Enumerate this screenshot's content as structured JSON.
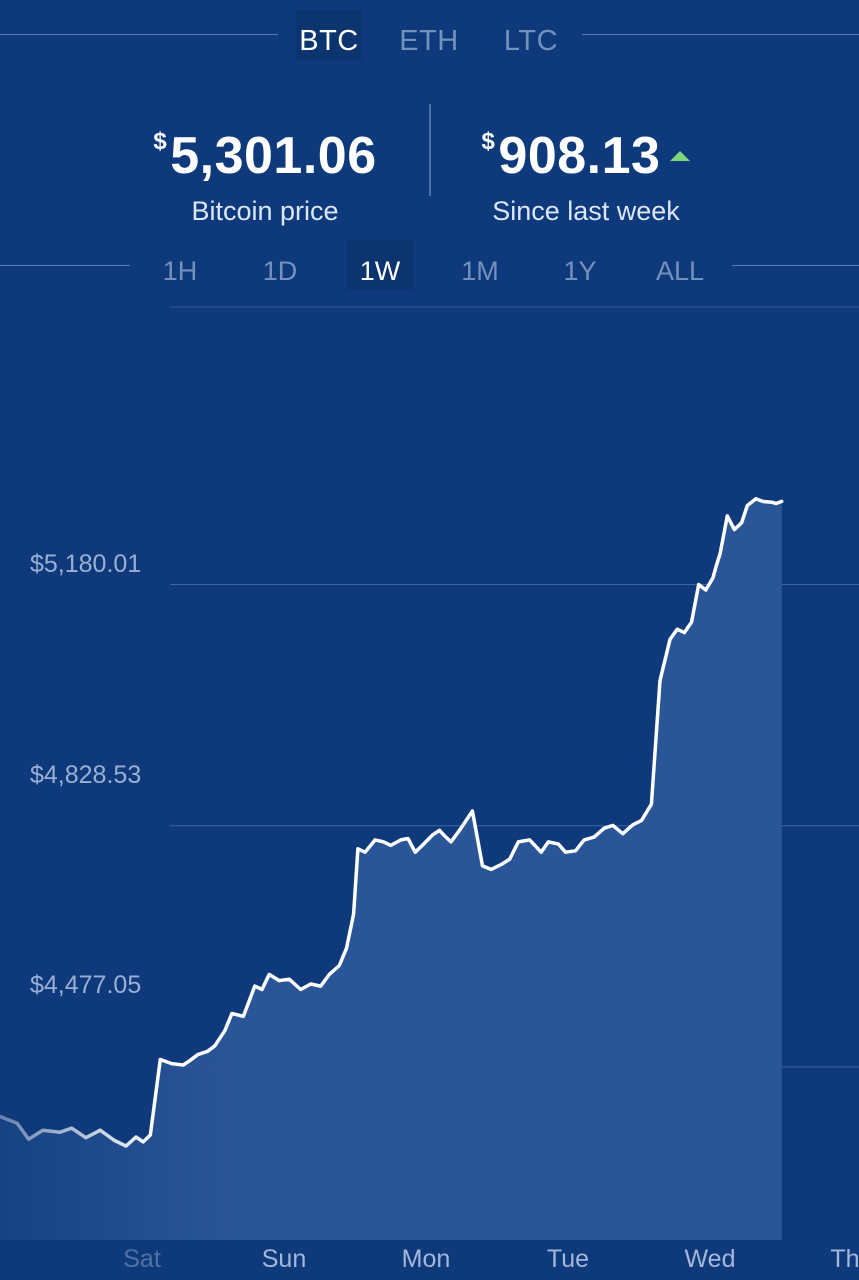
{
  "coins": [
    {
      "label": "BTC",
      "active": true
    },
    {
      "label": "ETH",
      "active": false
    },
    {
      "label": "LTC",
      "active": false
    }
  ],
  "summary": {
    "currency_symbol": "$",
    "price": "5,301.06",
    "price_label": "Bitcoin price",
    "change": "908.13",
    "change_label": "Since last week",
    "change_direction": "up"
  },
  "ranges": [
    {
      "label": "1H",
      "active": false
    },
    {
      "label": "1D",
      "active": false
    },
    {
      "label": "1W",
      "active": true
    },
    {
      "label": "1M",
      "active": false
    },
    {
      "label": "1Y",
      "active": false
    },
    {
      "label": "ALL",
      "active": false
    }
  ],
  "colors": {
    "background": "#0e3a7c",
    "line": "#ffffff",
    "fill": "#2a5596",
    "up": "#7fd87a"
  },
  "chart_data": {
    "type": "area",
    "y_tick_labels": [
      "$5,180.01",
      "$4,828.53",
      "$4,477.05"
    ],
    "y_ticks": [
      5180.01,
      4828.53,
      4477.05
    ],
    "x_tick_labels": [
      "Sat",
      "Sun",
      "Mon",
      "Tue",
      "Wed",
      "Th"
    ],
    "x_ticks": [
      0.5,
      1.5,
      2.5,
      3.5,
      4.5,
      5.5
    ],
    "ylim": [
      4225,
      5580
    ],
    "xlim": [
      0,
      6
    ],
    "series": [
      {
        "x": [
          0.0,
          0.12,
          0.2,
          0.3,
          0.42,
          0.5,
          0.6,
          0.7,
          0.8,
          0.88,
          0.95,
          1.0,
          1.05,
          1.12,
          1.2,
          1.28,
          1.33,
          1.38,
          1.45,
          1.5,
          1.57,
          1.62,
          1.7,
          1.78,
          1.83,
          1.88,
          1.95,
          2.02,
          2.1,
          2.17,
          2.24,
          2.3,
          2.37,
          2.42,
          2.47,
          2.5,
          2.55,
          2.62,
          2.68,
          2.73,
          2.8,
          2.85,
          2.9,
          2.95,
          3.02,
          3.07,
          3.1,
          3.15,
          3.22,
          3.3,
          3.37,
          3.43,
          3.5,
          3.56,
          3.62,
          3.7,
          3.78,
          3.83,
          3.9,
          3.95,
          4.02,
          4.08,
          4.15,
          4.22,
          4.28,
          4.35,
          4.42,
          4.48,
          4.55,
          4.61,
          4.68,
          4.73,
          4.78,
          4.83,
          4.88,
          4.93,
          4.98,
          5.0,
          5.03,
          5.08,
          5.13,
          5.18,
          5.22,
          5.28,
          5.33,
          5.39,
          5.42,
          5.46
        ],
        "values": [
          4405,
          4395,
          4372,
          4385,
          4382,
          4388,
          4374,
          4385,
          4370,
          4362,
          4375,
          4368,
          4378,
          4488,
          4482,
          4480,
          4487,
          4495,
          4500,
          4508,
          4530,
          4555,
          4551,
          4595,
          4590,
          4612,
          4603,
          4605,
          4590,
          4598,
          4595,
          4612,
          4625,
          4650,
          4700,
          4795,
          4790,
          4808,
          4805,
          4800,
          4808,
          4810,
          4790,
          4800,
          4815,
          4822,
          4815,
          4805,
          4825,
          4850,
          4770,
          4765,
          4772,
          4780,
          4805,
          4808,
          4790,
          4805,
          4802,
          4790,
          4792,
          4808,
          4812,
          4825,
          4829,
          4817,
          4830,
          4836,
          4860,
          5040,
          5100,
          5115,
          5110,
          5125,
          5180,
          5172,
          5190,
          5205,
          5225,
          5280,
          5260,
          5270,
          5295,
          5305,
          5301,
          5300,
          5298,
          5301.06
        ]
      }
    ]
  }
}
